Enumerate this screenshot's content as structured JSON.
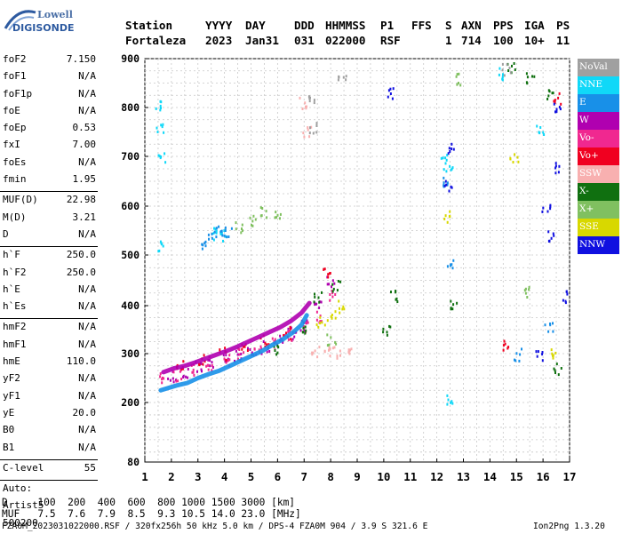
{
  "logo": {
    "line1": "Lowell",
    "line2": "DIGISONDE"
  },
  "header": {
    "labels": [
      "Station",
      "YYYY",
      "DAY",
      "DDD",
      "HHMMSS",
      "P1",
      "FFS",
      "S",
      "AXN",
      "PPS",
      "IGA",
      "PS"
    ],
    "values": [
      "Fortaleza",
      "2023",
      "Jan31",
      "031",
      "022000",
      "RSF",
      "1",
      "714",
      "100",
      "10+",
      "11"
    ]
  },
  "params": {
    "group1": [
      {
        "label": "foF2",
        "value": "7.150"
      },
      {
        "label": "foF1",
        "value": "N/A"
      },
      {
        "label": "foF1p",
        "value": "N/A"
      },
      {
        "label": "foE",
        "value": "N/A"
      },
      {
        "label": "foEp",
        "value": "0.53"
      },
      {
        "label": "fxI",
        "value": "7.00"
      },
      {
        "label": "foEs",
        "value": "N/A"
      },
      {
        "label": "fmin",
        "value": "1.95"
      }
    ],
    "group2": [
      {
        "label": "MUF(D)",
        "value": "22.98"
      },
      {
        "label": "M(D)",
        "value": "3.21"
      },
      {
        "label": "D",
        "value": "N/A"
      }
    ],
    "group3": [
      {
        "label": "h`F",
        "value": "250.0"
      },
      {
        "label": "h`F2",
        "value": "250.0"
      },
      {
        "label": "h`E",
        "value": "N/A"
      },
      {
        "label": "h`Es",
        "value": "N/A"
      }
    ],
    "group4": [
      {
        "label": "hmF2",
        "value": "N/A"
      },
      {
        "label": "hmF1",
        "value": "N/A"
      },
      {
        "label": "hmE",
        "value": "110.0"
      },
      {
        "label": "yF2",
        "value": "N/A"
      },
      {
        "label": "yF1",
        "value": "N/A"
      },
      {
        "label": "yE",
        "value": "20.0"
      },
      {
        "label": "B0",
        "value": "N/A"
      },
      {
        "label": "B1",
        "value": "N/A"
      }
    ],
    "group5": [
      {
        "label": "C-level",
        "value": "55"
      }
    ],
    "auto_lines": [
      "Auto:",
      "Artist5",
      "500200"
    ]
  },
  "legend": [
    {
      "label": "NoVal",
      "color": "#a0a0a0"
    },
    {
      "label": "NNE",
      "color": "#10d8f8"
    },
    {
      "label": "E",
      "color": "#1890e8"
    },
    {
      "label": "W",
      "color": "#b000b0"
    },
    {
      "label": "Vo-",
      "color": "#f02890"
    },
    {
      "label": "Vo+",
      "color": "#f00020"
    },
    {
      "label": "SSW",
      "color": "#f8b0b0"
    },
    {
      "label": "X-",
      "color": "#107010"
    },
    {
      "label": "X+",
      "color": "#80c060"
    },
    {
      "label": "SSE",
      "color": "#d8d800"
    },
    {
      "label": "NNW",
      "color": "#1010e0"
    }
  ],
  "bottom": {
    "d_row": "D     100  200  400  600  800 1000 1500 3000 [km]",
    "muf_row": "MUF   7.5  7.6  7.9  8.5  9.3 10.5 14.0 23.0 [MHz]",
    "footer_left": "FZA0M_2023031022000.RSF / 320fx256h 50 kHz 5.0 km / DPS-4 FZA0M 904 / 3.9 S 321.6 E",
    "footer_right": "Ion2Png 1.3.20"
  },
  "chart_data": {
    "type": "scatter",
    "xlim": [
      1,
      17
    ],
    "ylim": [
      80,
      900
    ],
    "x_ticks": [
      "1",
      "2",
      "3",
      "4",
      "5",
      "6",
      "7",
      "8",
      "9",
      "10",
      "11",
      "12",
      "13",
      "14",
      "15",
      "16",
      "17"
    ],
    "y_ticks": [
      "80",
      "200",
      "300",
      "400",
      "500",
      "600",
      "700",
      "800",
      "900"
    ],
    "y_tick_values": [
      80,
      200,
      300,
      400,
      500,
      600,
      700,
      800,
      900
    ],
    "grid": true,
    "trace_series": [
      {
        "name": "E",
        "color": "#1890e8",
        "points": [
          [
            1.6,
            225
          ],
          [
            1.9,
            230
          ],
          [
            2.2,
            235
          ],
          [
            2.6,
            240
          ],
          [
            3.0,
            250
          ],
          [
            3.4,
            258
          ],
          [
            3.8,
            265
          ],
          [
            4.2,
            275
          ],
          [
            4.6,
            285
          ],
          [
            5.0,
            295
          ],
          [
            5.4,
            305
          ],
          [
            5.8,
            318
          ],
          [
            6.2,
            330
          ],
          [
            6.6,
            345
          ],
          [
            6.9,
            360
          ],
          [
            7.1,
            380
          ]
        ]
      },
      {
        "name": "W",
        "color": "#b000b0",
        "points": [
          [
            1.7,
            262
          ],
          [
            2.1,
            270
          ],
          [
            2.5,
            275
          ],
          [
            2.9,
            282
          ],
          [
            3.3,
            290
          ],
          [
            3.7,
            298
          ],
          [
            4.1,
            306
          ],
          [
            4.5,
            315
          ],
          [
            4.9,
            325
          ],
          [
            5.3,
            335
          ],
          [
            5.7,
            345
          ],
          [
            6.1,
            355
          ],
          [
            6.5,
            368
          ],
          [
            6.9,
            385
          ],
          [
            7.2,
            405
          ]
        ]
      }
    ],
    "point_series": [
      {
        "name": "NNE",
        "color": "#10d8f8",
        "points": [
          [
            1.5,
            810
          ],
          [
            1.55,
            760
          ],
          [
            1.6,
            700
          ],
          [
            1.5,
            520
          ],
          [
            3.6,
            545
          ],
          [
            3.9,
            540
          ],
          [
            12.3,
            700
          ],
          [
            12.4,
            680
          ],
          [
            12.5,
            210
          ],
          [
            15.9,
            760
          ],
          [
            14.4,
            870
          ]
        ]
      },
      {
        "name": "E",
        "color": "#1890e8",
        "points": [
          [
            3.2,
            520
          ],
          [
            3.5,
            545
          ],
          [
            3.8,
            548
          ],
          [
            4.1,
            552
          ],
          [
            12.3,
            650
          ],
          [
            12.5,
            480
          ],
          [
            16.2,
            360
          ],
          [
            15.0,
            300
          ]
        ]
      },
      {
        "name": "W",
        "color": "#b000b0",
        "points": [
          [
            2.0,
            255
          ],
          [
            2.5,
            265
          ],
          [
            3.0,
            275
          ],
          [
            3.5,
            285
          ],
          [
            4.0,
            290
          ],
          [
            4.5,
            300
          ],
          [
            5.0,
            305
          ],
          [
            5.5,
            315
          ],
          [
            6.0,
            330
          ],
          [
            6.5,
            345
          ],
          [
            7.0,
            360
          ],
          [
            7.5,
            400
          ],
          [
            8.0,
            450
          ]
        ]
      },
      {
        "name": "Vo-",
        "color": "#f02890",
        "points": [
          [
            1.7,
            250
          ],
          [
            2.2,
            258
          ],
          [
            2.8,
            268
          ],
          [
            3.4,
            278
          ],
          [
            4.0,
            290
          ],
          [
            4.6,
            300
          ],
          [
            5.2,
            310
          ],
          [
            5.8,
            322
          ],
          [
            6.4,
            338
          ],
          [
            7.0,
            355
          ],
          [
            7.6,
            380
          ],
          [
            8.0,
            420
          ]
        ]
      },
      {
        "name": "Vo+",
        "color": "#f00020",
        "points": [
          [
            2.3,
            280
          ],
          [
            3.1,
            290
          ],
          [
            3.9,
            302
          ],
          [
            4.7,
            315
          ],
          [
            5.5,
            330
          ],
          [
            6.3,
            345
          ],
          [
            7.8,
            470
          ],
          [
            14.5,
            320
          ],
          [
            16.5,
            820
          ]
        ]
      },
      {
        "name": "SSW",
        "color": "#f8b0b0",
        "points": [
          [
            7.4,
            305
          ],
          [
            7.8,
            305
          ],
          [
            8.2,
            305
          ],
          [
            8.6,
            305
          ],
          [
            6.9,
            810
          ],
          [
            7.1,
            750
          ]
        ]
      },
      {
        "name": "X-",
        "color": "#107010",
        "points": [
          [
            6.0,
            310
          ],
          [
            7.0,
            350
          ],
          [
            7.5,
            420
          ],
          [
            8.2,
            440
          ],
          [
            10.1,
            350
          ],
          [
            10.4,
            420
          ],
          [
            14.8,
            880
          ],
          [
            15.5,
            860
          ],
          [
            16.2,
            830
          ],
          [
            16.5,
            270
          ],
          [
            12.6,
            400
          ]
        ]
      },
      {
        "name": "X+",
        "color": "#80c060",
        "points": [
          [
            4.5,
            560
          ],
          [
            5.0,
            570
          ],
          [
            5.5,
            590
          ],
          [
            6.0,
            580
          ],
          [
            8.0,
            330
          ],
          [
            12.7,
            860
          ],
          [
            15.3,
            430
          ]
        ]
      },
      {
        "name": "SSE",
        "color": "#d8d800",
        "points": [
          [
            7.6,
            370
          ],
          [
            8.0,
            380
          ],
          [
            8.4,
            400
          ],
          [
            12.4,
            580
          ],
          [
            14.9,
            700
          ],
          [
            16.3,
            300
          ]
        ]
      },
      {
        "name": "NNW",
        "color": "#1010e0",
        "points": [
          [
            12.5,
            720
          ],
          [
            12.4,
            640
          ],
          [
            16.1,
            600
          ],
          [
            16.3,
            540
          ],
          [
            16.6,
            680
          ],
          [
            16.8,
            420
          ],
          [
            15.8,
            300
          ],
          [
            16.5,
            800
          ],
          [
            10.2,
            830
          ]
        ]
      },
      {
        "name": "NoVal",
        "color": "#a0a0a0",
        "points": [
          [
            7.2,
            820
          ],
          [
            7.3,
            760
          ],
          [
            8.4,
            860
          ],
          [
            14.6,
            880
          ]
        ]
      }
    ]
  }
}
